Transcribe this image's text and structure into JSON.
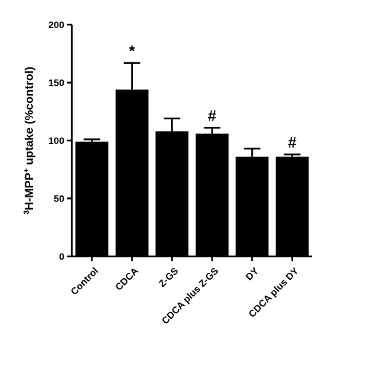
{
  "chart_data": {
    "type": "bar",
    "categories": [
      "Control",
      "CDCA",
      "Z-GS",
      "CDCA plus Z-GS",
      "DY",
      "CDCA plus DY"
    ],
    "values": [
      99,
      144,
      108,
      106,
      86,
      86
    ],
    "errors": [
      2,
      23,
      11,
      5,
      7,
      2
    ],
    "annotations": [
      "",
      "*",
      "",
      "#",
      "",
      "#"
    ],
    "ylabel": {
      "superscript_prefix": "3",
      "main": "H-MPP",
      "superscript_suffix": "+",
      "rest": " uptake (%control)"
    },
    "ylim": [
      0,
      200
    ],
    "yticks": [
      "0",
      "50",
      "100",
      "150",
      "200"
    ],
    "grid": false,
    "bar_color": "#000000"
  }
}
